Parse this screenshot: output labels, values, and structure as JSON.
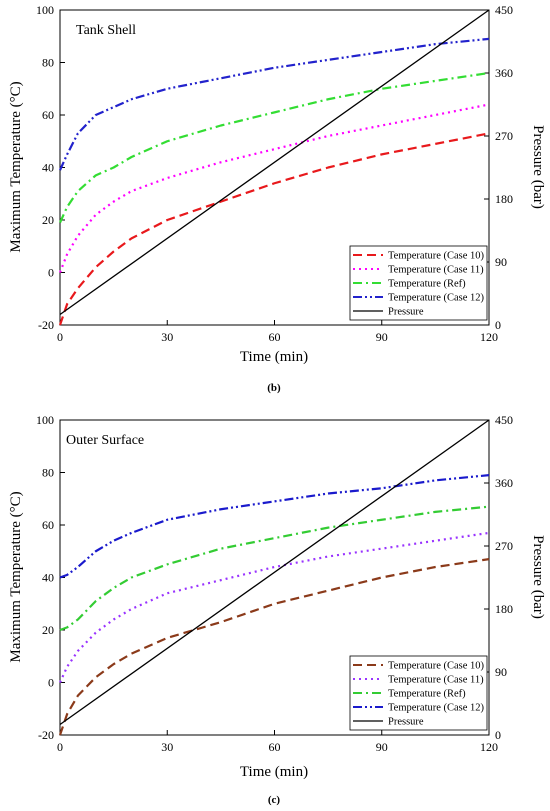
{
  "chart_data": [
    {
      "type": "line",
      "title": "Tank Shell",
      "caption": "(b)",
      "xlabel": "Time (min)",
      "ylabel": "Maximum Temperature (°C)",
      "y2label": "Pressure (bar)",
      "xlim": [
        0,
        120
      ],
      "ylim": [
        -20,
        100
      ],
      "y2lim": [
        0,
        450
      ],
      "xticks": [
        "0",
        "30",
        "60",
        "90",
        "120"
      ],
      "yticks": [
        "-20",
        "0",
        "20",
        "40",
        "60",
        "80",
        "100"
      ],
      "y2ticks": [
        "0",
        "90",
        "180",
        "270",
        "360",
        "450"
      ],
      "legend_position": "bottom-right",
      "grid": false,
      "series": [
        {
          "name": "Temperature (Case 10)",
          "axis": "left",
          "color": "#e8191c",
          "dash": "dash",
          "x": [
            0,
            2,
            5,
            10,
            15,
            20,
            30,
            45,
            60,
            75,
            90,
            105,
            120
          ],
          "y": [
            -20,
            -12,
            -6,
            2,
            8,
            13,
            20,
            27,
            34,
            40,
            45,
            49,
            53
          ]
        },
        {
          "name": "Temperature (Case 11)",
          "axis": "left",
          "color": "#ff00ff",
          "dash": "dot",
          "x": [
            0,
            2,
            5,
            10,
            15,
            20,
            30,
            45,
            60,
            75,
            90,
            105,
            120
          ],
          "y": [
            0,
            7,
            14,
            22,
            27,
            31,
            36,
            42,
            47,
            52,
            56,
            60,
            64
          ]
        },
        {
          "name": "Temperature (Ref)",
          "axis": "left",
          "color": "#33dd33",
          "dash": "dashdot",
          "x": [
            0,
            2,
            5,
            10,
            15,
            20,
            30,
            45,
            60,
            75,
            90,
            105,
            120
          ],
          "y": [
            19,
            25,
            31,
            37,
            40,
            44,
            50,
            56,
            61,
            66,
            70,
            73,
            76
          ]
        },
        {
          "name": "Temperature (Case 12)",
          "axis": "left",
          "color": "#2222cc",
          "dash": "dashdotdot",
          "x": [
            0,
            2,
            5,
            10,
            15,
            20,
            30,
            45,
            60,
            75,
            90,
            105,
            120
          ],
          "y": [
            39,
            45,
            53,
            60,
            63,
            66,
            70,
            74,
            78,
            81,
            84,
            87,
            89
          ]
        },
        {
          "name": "Pressure",
          "axis": "right",
          "color": "#000000",
          "dash": "solid",
          "x": [
            0,
            120
          ],
          "y": [
            15,
            450
          ]
        }
      ]
    },
    {
      "type": "line",
      "title": "Outer Surface",
      "caption": "(c)",
      "xlabel": "Time (min)",
      "ylabel": "Maximum Temperature (°C)",
      "y2label": "Pressure (bar)",
      "xlim": [
        0,
        120
      ],
      "ylim": [
        -20,
        100
      ],
      "y2lim": [
        0,
        450
      ],
      "xticks": [
        "0",
        "30",
        "60",
        "90",
        "120"
      ],
      "yticks": [
        "-20",
        "0",
        "20",
        "40",
        "60",
        "80",
        "100"
      ],
      "y2ticks": [
        "0",
        "90",
        "180",
        "270",
        "360",
        "450"
      ],
      "legend_position": "bottom-right",
      "grid": false,
      "series": [
        {
          "name": "Temperature (Case 10)",
          "axis": "left",
          "color": "#8b3a1a",
          "dash": "dash",
          "x": [
            0,
            2,
            5,
            10,
            15,
            20,
            30,
            45,
            60,
            75,
            90,
            105,
            120
          ],
          "y": [
            -20,
            -12,
            -5,
            2,
            7,
            11,
            17,
            23,
            30,
            35,
            40,
            44,
            47
          ]
        },
        {
          "name": "Temperature (Case 11)",
          "axis": "left",
          "color": "#9933ff",
          "dash": "dot",
          "x": [
            0,
            2,
            5,
            10,
            15,
            20,
            30,
            45,
            60,
            75,
            90,
            105,
            120
          ],
          "y": [
            0,
            6,
            12,
            19,
            24,
            28,
            34,
            39,
            44,
            48,
            51,
            54,
            57
          ]
        },
        {
          "name": "Temperature (Ref)",
          "axis": "left",
          "color": "#33cc33",
          "dash": "dashdot",
          "x": [
            0,
            2,
            5,
            10,
            15,
            20,
            30,
            45,
            60,
            75,
            90,
            105,
            120
          ],
          "y": [
            20,
            21,
            24,
            31,
            36,
            40,
            45,
            51,
            55,
            59,
            62,
            65,
            67
          ]
        },
        {
          "name": "Temperature (Case 12)",
          "axis": "left",
          "color": "#1a1acc",
          "dash": "dashdotdot",
          "x": [
            0,
            2,
            5,
            10,
            15,
            20,
            30,
            45,
            60,
            75,
            90,
            105,
            120
          ],
          "y": [
            40,
            41,
            44,
            50,
            54,
            57,
            62,
            66,
            69,
            72,
            74,
            77,
            79
          ]
        },
        {
          "name": "Pressure",
          "axis": "right",
          "color": "#000000",
          "dash": "solid",
          "x": [
            0,
            120
          ],
          "y": [
            15,
            450
          ]
        }
      ]
    }
  ]
}
